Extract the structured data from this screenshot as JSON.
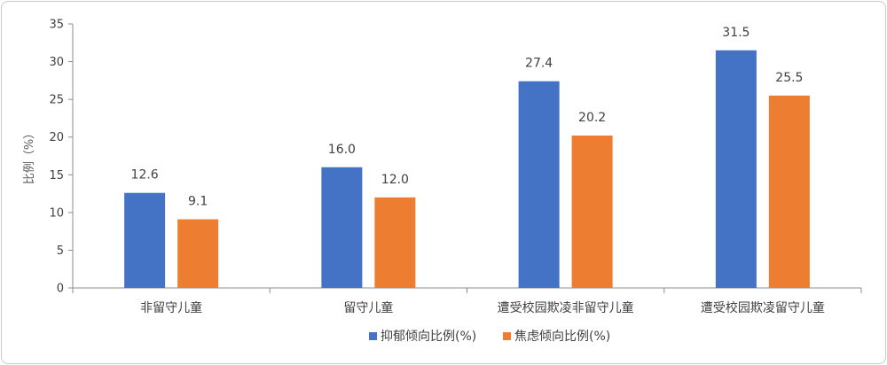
{
  "chart_data": {
    "type": "bar",
    "categories": [
      "非留守儿童",
      "留守儿童",
      "遭受校园欺凌非留守儿童",
      "遭受校园欺凌留守儿童"
    ],
    "series": [
      {
        "name": "抑郁倾向比例(%)",
        "values": [
          12.6,
          16.0,
          27.4,
          31.5
        ],
        "color": "#4472C4"
      },
      {
        "name": "焦虑倾向比例(%)",
        "values": [
          9.1,
          12.0,
          20.2,
          25.5
        ],
        "color": "#ED7D31"
      }
    ],
    "value_labels": [
      [
        "12.6",
        "16.0",
        "27.4",
        "31.5"
      ],
      [
        "9.1",
        "12.0",
        "20.2",
        "25.5"
      ]
    ],
    "ylabel": "比例（%）",
    "ylim": [
      0,
      35
    ],
    "yticks": [
      0,
      5,
      10,
      15,
      20,
      25,
      30,
      35
    ],
    "grid": false,
    "legend": "bottom"
  }
}
